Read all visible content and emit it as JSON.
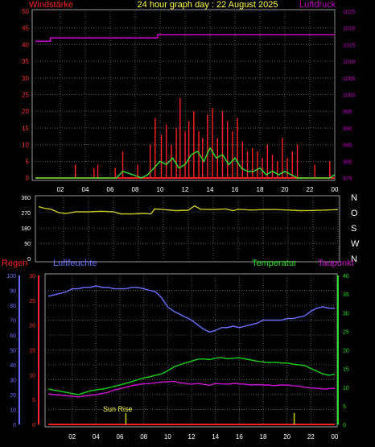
{
  "title": "24 hour graph day : 22 August 2025",
  "x_hour_labels": [
    "02",
    "04",
    "06",
    "08",
    "10",
    "12",
    "14",
    "16",
    "18",
    "20",
    "22",
    "00"
  ],
  "colors": {
    "wind": "#ff2020",
    "wind_avg": "#30e030",
    "pressure": "#c000c0",
    "direction": "#c8c820",
    "humidity": "#6a70ff",
    "temperature": "#10d010",
    "dewpoint": "#d010d0",
    "rain": "#ff2020",
    "sun_rise": "#d0d000",
    "axis_text_left": "#ff3030",
    "axis_humidity": "#6a70ff",
    "axis_temp": "#20e020",
    "panel_border": "#9a9a9a",
    "grid": "#5a5a5a"
  },
  "chart_data": [
    {
      "type": "bar",
      "panel": "wind",
      "left_axis_label": "Windstärke",
      "right_axis_label": "Luftdruck",
      "left_ticks": [
        "0",
        "5",
        "10",
        "15",
        "20",
        "25",
        "30",
        "35",
        "40",
        "45",
        "50"
      ],
      "right_ticks": [
        "975",
        "980",
        "985",
        "990",
        "995",
        "1000",
        "1005",
        "1010",
        "1015",
        "1020",
        "1025"
      ],
      "ylim_left": [
        0,
        50
      ],
      "ylim_right": [
        975,
        1025
      ],
      "x_hours": [
        0,
        24
      ],
      "series": [
        {
          "name": "Windstärke",
          "style": "gust-bars",
          "x": [
            3.2,
            4.7,
            5.0,
            6.4,
            7.0,
            8.2,
            9.2,
            9.6,
            10.1,
            10.5,
            10.9,
            11.3,
            11.6,
            12.0,
            12.3,
            12.7,
            13.1,
            13.4,
            13.8,
            14.2,
            14.6,
            15.0,
            15.4,
            15.8,
            16.2,
            16.6,
            17.0,
            17.4,
            17.8,
            18.2,
            18.6,
            19.0,
            19.4,
            19.8,
            20.2,
            20.6,
            21.0,
            22.4,
            23.6
          ],
          "values": [
            4,
            3,
            4,
            3,
            8,
            4,
            10,
            18,
            13,
            16,
            10,
            15,
            24,
            14,
            17,
            20,
            14,
            12,
            19,
            21,
            12,
            20,
            17,
            14,
            18,
            11,
            8,
            9,
            8,
            6,
            10,
            7,
            5,
            12,
            6,
            8,
            10,
            4,
            5
          ]
        },
        {
          "name": "Wind-Mittel",
          "style": "line",
          "x": [
            0,
            6.5,
            7.0,
            7.8,
            8.5,
            9.0,
            9.5,
            10.0,
            10.5,
            11.0,
            11.5,
            12.0,
            12.5,
            13.0,
            13.5,
            14.0,
            14.5,
            15.0,
            15.5,
            16.0,
            16.5,
            17.0,
            17.5,
            18.0,
            18.5,
            19.0,
            19.5,
            20.0,
            20.5,
            21.0,
            21.5,
            23.6,
            24
          ],
          "values": [
            0,
            0,
            2,
            1,
            0,
            1,
            3,
            5,
            4,
            6,
            3,
            4,
            7,
            8,
            5,
            9,
            6,
            7,
            4,
            6,
            3,
            2,
            2,
            3,
            1,
            2,
            1,
            2,
            1,
            0,
            0,
            0,
            1
          ]
        },
        {
          "name": "Luftdruck",
          "style": "step",
          "x": [
            0,
            1.2,
            1.2,
            9.8,
            9.8,
            24
          ],
          "values": [
            1016,
            1016,
            1017,
            1017,
            1018,
            1018
          ]
        }
      ]
    },
    {
      "type": "line",
      "panel": "direction",
      "left_ticks": [
        "0",
        "90",
        "180",
        "270",
        "360"
      ],
      "right_labels": [
        "N",
        "W",
        "S",
        "O",
        "N"
      ],
      "ylim": [
        0,
        360
      ],
      "series": [
        {
          "name": "Windrichtung",
          "x": [
            0,
            0.5,
            1.0,
            1.6,
            2.2,
            3.0,
            4.0,
            5.0,
            6.0,
            6.6,
            7.5,
            8.5,
            9.0,
            9.3,
            10.0,
            11.0,
            12.0,
            12.5,
            13.0,
            14.0,
            15.0,
            15.6,
            16.0,
            17.0,
            18.0,
            19.0,
            20.0,
            21.0,
            22.0,
            23.0,
            24.0
          ],
          "values": [
            305,
            295,
            290,
            270,
            265,
            275,
            275,
            278,
            275,
            262,
            262,
            265,
            262,
            292,
            288,
            282,
            284,
            310,
            290,
            288,
            292,
            282,
            290,
            285,
            288,
            288,
            285,
            282,
            283,
            285,
            288
          ]
        }
      ]
    },
    {
      "type": "line",
      "panel": "climate",
      "top_labels": {
        "rain": "Regen",
        "humidity": "Luftfeuchte",
        "temperature": "Temperatur",
        "dewpoint": "Taupunkt"
      },
      "humidity_ticks": [
        "0",
        "10",
        "20",
        "30",
        "40",
        "50",
        "60",
        "70",
        "80",
        "90",
        "100"
      ],
      "rain_ticks": [
        "0",
        "5",
        "10",
        "15",
        "20",
        "25",
        "30"
      ],
      "temp_ticks": [
        "0",
        "5",
        "10",
        "15",
        "20",
        "25",
        "30",
        "35",
        "40"
      ],
      "ylim_humidity": [
        0,
        100
      ],
      "ylim_temp": [
        0,
        40
      ],
      "annotation": "Sun Rise",
      "sunrise_hour": 6.5,
      "sunset_hour": 20.6,
      "series": [
        {
          "name": "Luftfeuchte",
          "axis": "humidity",
          "x": [
            0,
            0.5,
            1.0,
            1.5,
            2.0,
            2.5,
            3.0,
            3.5,
            4.0,
            4.5,
            5.0,
            5.5,
            6.0,
            6.5,
            7.0,
            7.5,
            8.0,
            8.5,
            9.0,
            9.5,
            10.0,
            10.5,
            11.0,
            11.5,
            12.0,
            12.5,
            13.0,
            13.5,
            14.0,
            14.5,
            15.0,
            15.5,
            16.0,
            16.5,
            17.0,
            17.5,
            18.0,
            18.5,
            19.0,
            19.5,
            20.0,
            20.5,
            21.0,
            21.5,
            22.0,
            22.5,
            23.0,
            23.5,
            24.0
          ],
          "values": [
            86,
            87,
            88,
            89,
            91,
            91,
            92,
            92,
            93,
            92,
            92,
            91,
            91,
            91,
            92,
            92,
            91,
            90,
            89,
            85,
            79,
            76,
            74,
            72,
            70,
            67,
            64,
            62,
            63,
            65,
            65,
            66,
            65,
            66,
            67,
            68,
            70,
            70,
            70,
            70,
            71,
            71,
            72,
            73,
            76,
            78,
            79,
            78,
            78
          ]
        },
        {
          "name": "Temperatur",
          "axis": "temp",
          "x": [
            0,
            0.5,
            1.0,
            1.5,
            2.0,
            2.5,
            3.0,
            3.5,
            4.0,
            4.5,
            5.0,
            5.5,
            6.0,
            6.5,
            7.0,
            7.5,
            8.0,
            8.5,
            9.0,
            9.5,
            10.0,
            10.5,
            11.0,
            11.5,
            12.0,
            12.5,
            13.0,
            13.5,
            14.0,
            14.5,
            15.0,
            15.5,
            16.0,
            16.5,
            17.0,
            17.5,
            18.0,
            18.5,
            19.0,
            19.5,
            20.0,
            20.5,
            21.0,
            21.5,
            22.0,
            22.5,
            23.0,
            23.5,
            24.0
          ],
          "values": [
            9.5,
            9.2,
            8.9,
            8.6,
            8.3,
            8.0,
            8.5,
            9.0,
            9.3,
            9.5,
            9.8,
            10.2,
            10.6,
            11.0,
            11.5,
            12.0,
            12.5,
            12.8,
            13.2,
            13.6,
            14.4,
            15.4,
            16.0,
            16.5,
            17.0,
            17.5,
            17.6,
            17.4,
            17.8,
            18.0,
            17.6,
            17.8,
            17.9,
            17.6,
            17.3,
            17.0,
            16.8,
            16.6,
            16.7,
            16.5,
            16.5,
            16.2,
            16.0,
            15.8,
            15.0,
            14.3,
            13.6,
            13.2,
            13.5
          ]
        },
        {
          "name": "Taupunkt",
          "axis": "temp",
          "x": [
            0,
            0.5,
            1.0,
            1.5,
            2.0,
            2.5,
            3.0,
            3.5,
            4.0,
            4.5,
            5.0,
            5.5,
            6.0,
            6.5,
            7.0,
            7.5,
            8.0,
            8.5,
            9.0,
            9.5,
            10.0,
            10.5,
            11.0,
            11.5,
            12.0,
            12.5,
            13.0,
            13.5,
            14.0,
            14.5,
            15.0,
            15.5,
            16.0,
            16.5,
            17.0,
            17.5,
            18.0,
            18.5,
            19.0,
            19.5,
            20.0,
            20.5,
            21.0,
            21.5,
            22.0,
            22.5,
            23.0,
            23.5,
            24.0
          ],
          "values": [
            8.2,
            8.0,
            7.9,
            7.7,
            7.6,
            7.4,
            7.6,
            7.8,
            8.0,
            8.3,
            8.6,
            9.2,
            9.6,
            10.0,
            10.4,
            10.7,
            10.9,
            11.0,
            11.2,
            11.4,
            11.5,
            11.6,
            11.2,
            11.0,
            10.8,
            11.0,
            10.8,
            10.5,
            11.0,
            10.9,
            10.8,
            11.0,
            10.9,
            10.8,
            10.6,
            10.7,
            10.6,
            10.6,
            10.4,
            10.6,
            10.6,
            10.4,
            10.3,
            10.0,
            9.8,
            9.7,
            9.5,
            9.6,
            9.7
          ]
        },
        {
          "name": "Regen",
          "axis": "rain",
          "x": [
            0,
            24
          ],
          "values": [
            0,
            0
          ]
        }
      ]
    }
  ]
}
